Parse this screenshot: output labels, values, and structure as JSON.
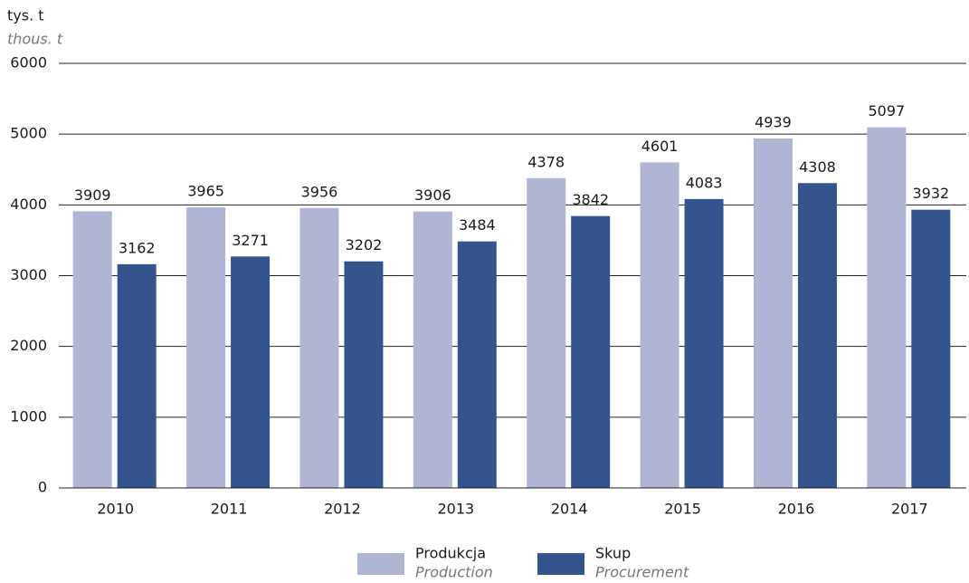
{
  "chart_data": {
    "type": "bar",
    "axis_label": "tys. t",
    "axis_label_en": "thous. t",
    "categories": [
      "2010",
      "2011",
      "2012",
      "2013",
      "2014",
      "2015",
      "2016",
      "2017"
    ],
    "series": [
      {
        "name": "Produkcja",
        "name_en": "Production",
        "color": "#b0b5d3",
        "values": [
          3909,
          3965,
          3956,
          3906,
          4378,
          4601,
          4939,
          5097
        ]
      },
      {
        "name": "Skup",
        "name_en": "Procurement",
        "color": "#34548e",
        "values": [
          3162,
          3271,
          3202,
          3484,
          3842,
          4083,
          4308,
          3932
        ]
      }
    ],
    "ylim": [
      0,
      6000
    ],
    "yticks": [
      0,
      1000,
      2000,
      3000,
      4000,
      5000,
      6000
    ],
    "grid": true
  }
}
